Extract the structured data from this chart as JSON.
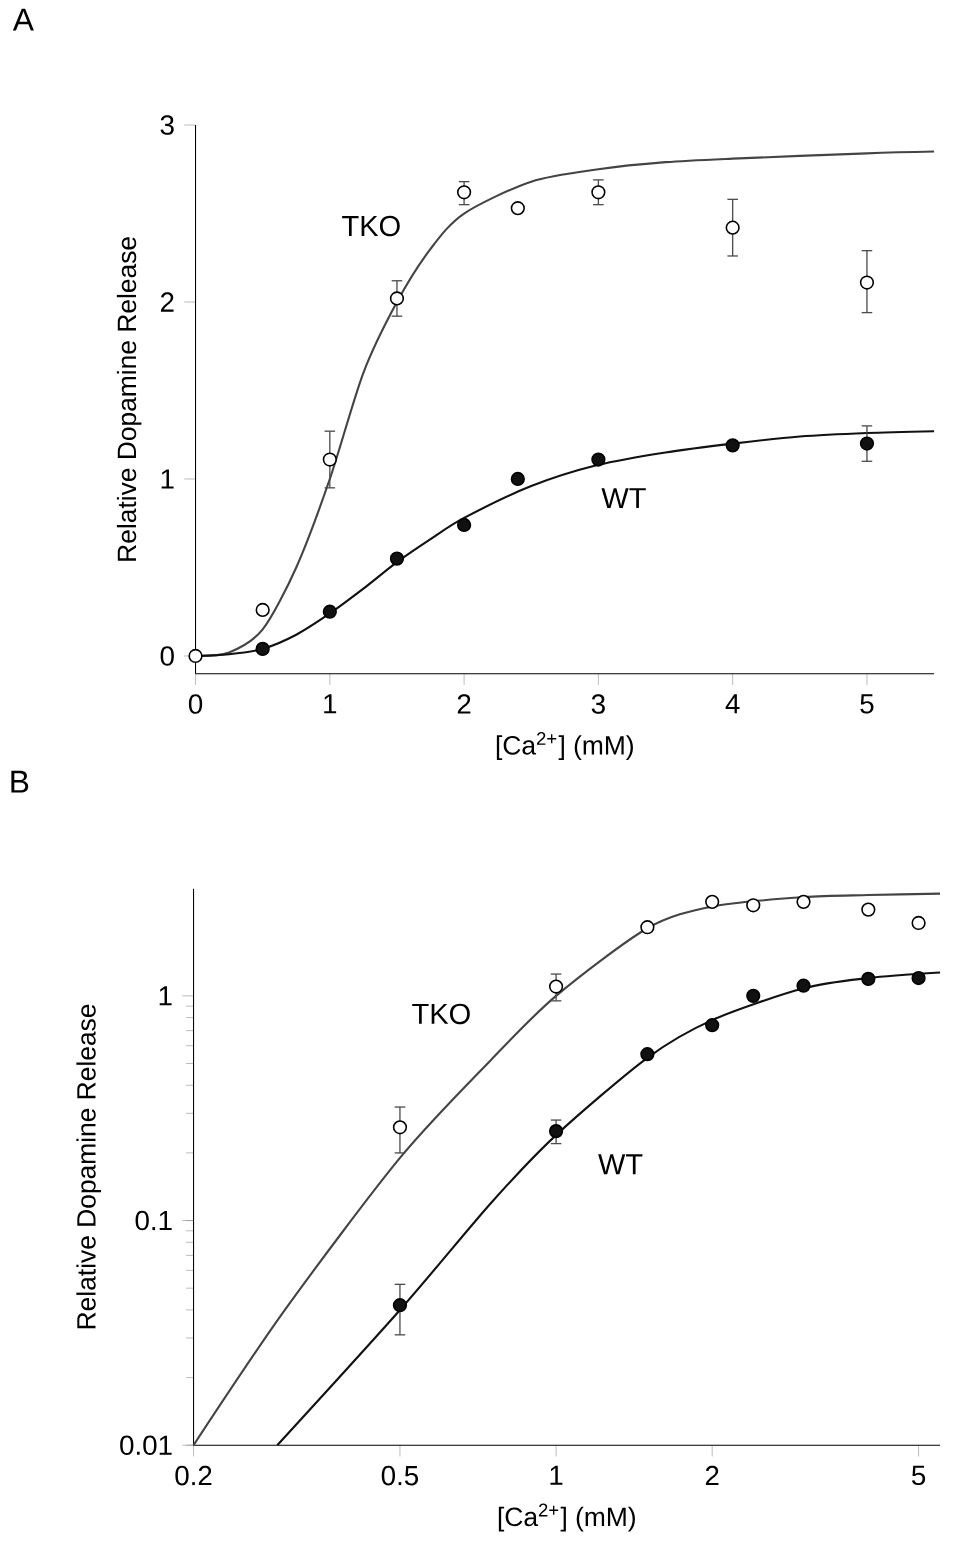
{
  "chart_data": [
    {
      "type": "scatter",
      "title": "A",
      "xlabel": "[Ca$^{2+}$]  (mM)",
      "ylabel": "Relative Dopamine Release",
      "xlim": [
        0,
        5.5
      ],
      "ylim": [
        -0.1,
        3
      ],
      "xticks": [
        0,
        1,
        2,
        3,
        4,
        5
      ],
      "yticks": [
        0,
        1,
        2,
        3
      ],
      "series": [
        {
          "type": "line",
          "color": "#444444",
          "marker": "none",
          "x": [
            0,
            0.25,
            0.5,
            0.75,
            1.0,
            1.25,
            1.5,
            1.75,
            2.0,
            2.5,
            3.0,
            3.5,
            4.0,
            5.0,
            5.5
          ],
          "values": [
            0,
            0.02,
            0.15,
            0.5,
            1.0,
            1.6,
            2.0,
            2.3,
            2.5,
            2.68,
            2.75,
            2.79,
            2.81,
            2.84,
            2.85
          ]
        },
        {
          "type": "line",
          "color": "#111111",
          "marker": "none",
          "x": [
            0,
            0.25,
            0.5,
            0.75,
            1.0,
            1.25,
            1.5,
            1.75,
            2.0,
            2.5,
            3.0,
            3.5,
            4.0,
            4.5,
            5.0,
            5.5
          ],
          "values": [
            0,
            0.01,
            0.04,
            0.12,
            0.24,
            0.38,
            0.53,
            0.66,
            0.78,
            0.96,
            1.08,
            1.15,
            1.2,
            1.24,
            1.26,
            1.27
          ]
        },
        {
          "type": "scatter",
          "color": "#ffffff",
          "marker": "circle",
          "x": [
            0,
            0.5,
            1,
            1.5,
            2,
            2.4,
            3,
            4,
            5
          ],
          "values": [
            0,
            0.26,
            1.11,
            2.02,
            2.62,
            2.53,
            2.62,
            2.42,
            2.11
          ],
          "errors": [
            null,
            null,
            [
              0.95,
              1.27
            ],
            [
              1.92,
              2.12
            ],
            [
              2.55,
              2.68
            ],
            null,
            [
              2.55,
              2.69
            ],
            [
              2.26,
              2.58
            ],
            [
              1.94,
              2.29
            ]
          ]
        },
        {
          "type": "scatter",
          "color": "#111111",
          "marker": "circle",
          "x": [
            0.5,
            1,
            1.5,
            2,
            2.4,
            3,
            4,
            5
          ],
          "values": [
            0.04,
            0.25,
            0.55,
            0.74,
            1.0,
            1.11,
            1.19,
            1.2
          ],
          "errors": [
            null,
            null,
            null,
            null,
            null,
            null,
            null,
            [
              1.1,
              1.3
            ]
          ]
        }
      ],
      "annotations": [
        "TKO",
        "WT"
      ]
    },
    {
      "type": "scatter",
      "title": "B",
      "xlabel": "[Ca$^{2+}$]  (mM)",
      "ylabel": "Relative Dopamine Release",
      "log": "xy",
      "xlim": [
        0.2,
        5.5
      ],
      "ylim": [
        0.01,
        3
      ],
      "xticks": [
        0.2,
        0.5,
        1,
        2,
        5
      ],
      "yticks": [
        0.01,
        0.1,
        1
      ],
      "series": [
        {
          "type": "line",
          "color": "#444444",
          "marker": "none",
          "x": [
            0.2,
            0.3,
            0.5,
            0.75,
            1.0,
            1.5,
            2.0,
            3.0,
            4.0,
            5.5
          ],
          "values": [
            0.01,
            0.04,
            0.19,
            0.52,
            1.0,
            2.0,
            2.5,
            2.75,
            2.81,
            2.85
          ]
        },
        {
          "type": "line",
          "color": "#111111",
          "marker": "none",
          "x": [
            0.29,
            0.5,
            0.75,
            1.0,
            1.5,
            2.0,
            3.0,
            4.0,
            5.5
          ],
          "values": [
            0.01,
            0.04,
            0.12,
            0.24,
            0.53,
            0.78,
            1.08,
            1.2,
            1.27
          ]
        },
        {
          "type": "scatter",
          "color": "#ffffff",
          "marker": "circle",
          "x": [
            0.5,
            1,
            1.5,
            2,
            2.4,
            3,
            4,
            5
          ],
          "values": [
            0.26,
            1.1,
            2.02,
            2.62,
            2.53,
            2.62,
            2.42,
            2.11
          ],
          "errors": [
            [
              0.2,
              0.32
            ],
            [
              0.95,
              1.25
            ],
            null,
            null,
            null,
            null,
            null,
            null
          ]
        },
        {
          "type": "scatter",
          "color": "#111111",
          "marker": "circle",
          "x": [
            0.5,
            1,
            1.5,
            2,
            2.4,
            3,
            4,
            5
          ],
          "values": [
            0.042,
            0.25,
            0.55,
            0.74,
            1.0,
            1.11,
            1.19,
            1.2
          ],
          "errors": [
            [
              0.031,
              0.052
            ],
            [
              0.22,
              0.28
            ],
            null,
            null,
            null,
            null,
            null,
            null
          ]
        }
      ],
      "annotations": [
        "TKO",
        "WT"
      ]
    }
  ]
}
